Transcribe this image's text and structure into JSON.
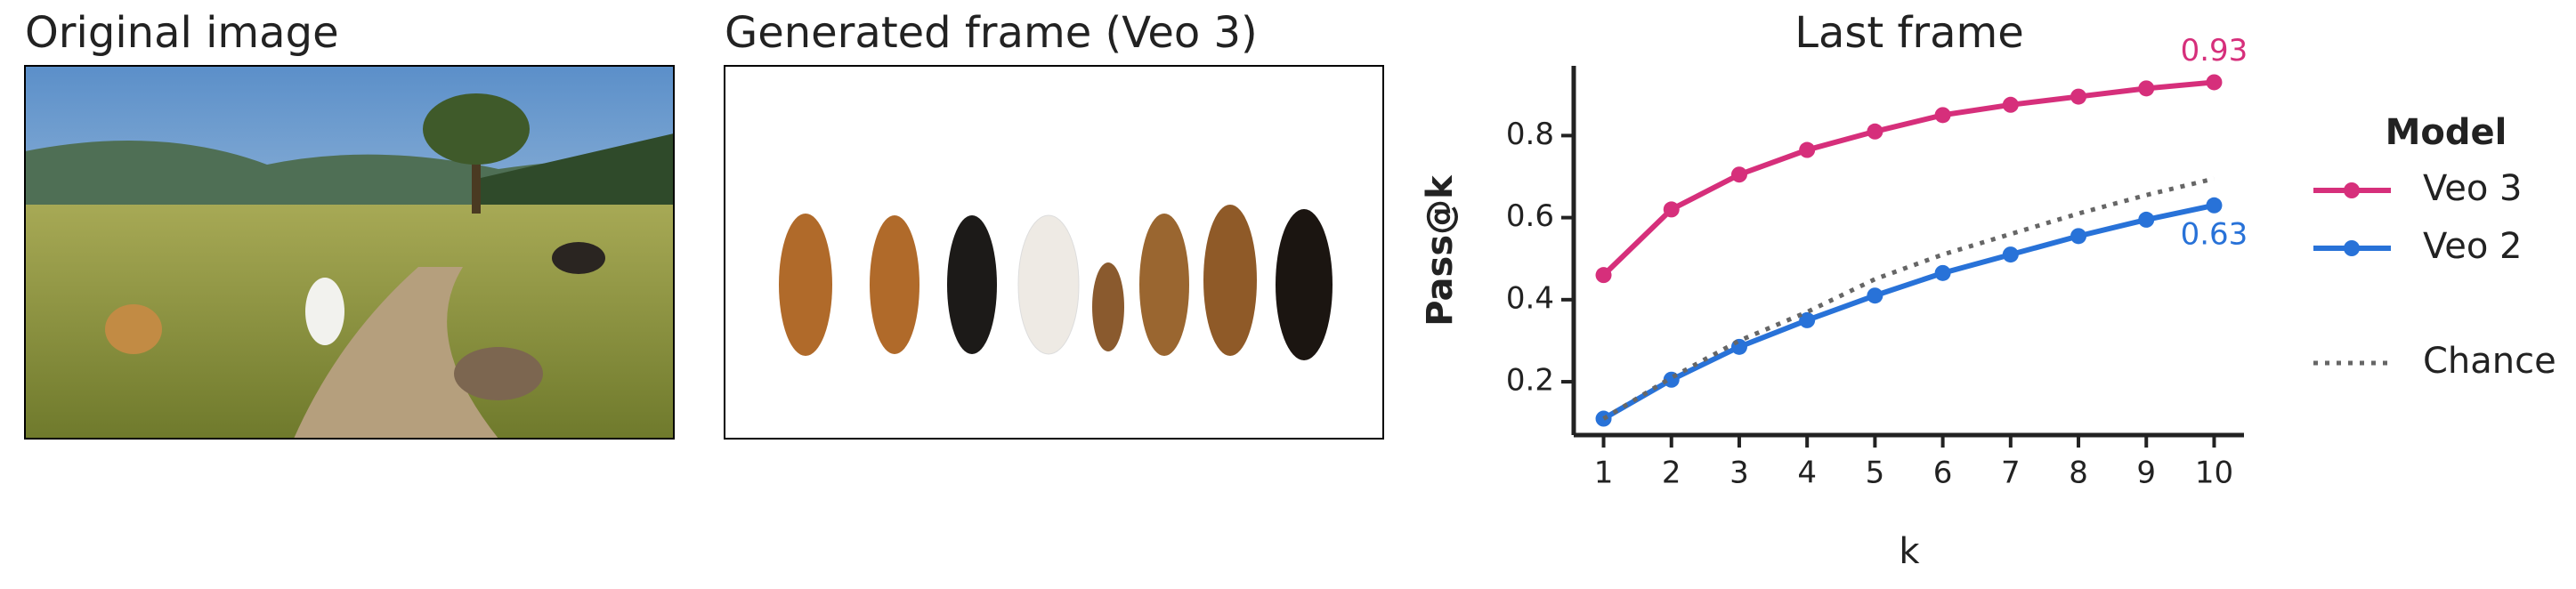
{
  "panels": [
    {
      "title": "Original image"
    },
    {
      "title": "Generated frame (Veo 3)"
    }
  ],
  "chart_data": {
    "type": "line",
    "title": "Last frame",
    "x_label": "k",
    "y_label": "Pass@k",
    "x": [
      1,
      2,
      3,
      4,
      5,
      6,
      7,
      8,
      9,
      10
    ],
    "xlim": [
      0.56,
      10.44
    ],
    "xticks": [
      1,
      2,
      3,
      4,
      5,
      6,
      7,
      8,
      9,
      10
    ],
    "ylim": [
      0.07,
      0.97
    ],
    "yticks": [
      0.2,
      0.4,
      0.6,
      0.8
    ],
    "legend_title": "Model",
    "legend": "outside right",
    "series": [
      {
        "name": "Veo 3",
        "color": "#d62f7b",
        "style": "solid",
        "markers": true,
        "values": [
          0.46,
          0.62,
          0.705,
          0.765,
          0.81,
          0.85,
          0.875,
          0.895,
          0.915,
          0.93
        ],
        "value_labels": [
          null,
          null,
          null,
          null,
          null,
          null,
          null,
          null,
          null,
          "0.93"
        ]
      },
      {
        "name": "Veo 2",
        "color": "#2872d8",
        "style": "solid",
        "markers": true,
        "values": [
          0.11,
          0.205,
          0.285,
          0.35,
          0.41,
          0.465,
          0.51,
          0.555,
          0.595,
          0.63
        ],
        "value_labels": [
          null,
          null,
          null,
          null,
          null,
          null,
          null,
          null,
          null,
          "0.63"
        ]
      },
      {
        "name": "Chance",
        "color": "#666666",
        "style": "dotted",
        "markers": false,
        "values": [
          0.11,
          0.21,
          0.3,
          0.37,
          0.45,
          0.51,
          0.56,
          0.61,
          0.655,
          0.695
        ]
      }
    ]
  }
}
